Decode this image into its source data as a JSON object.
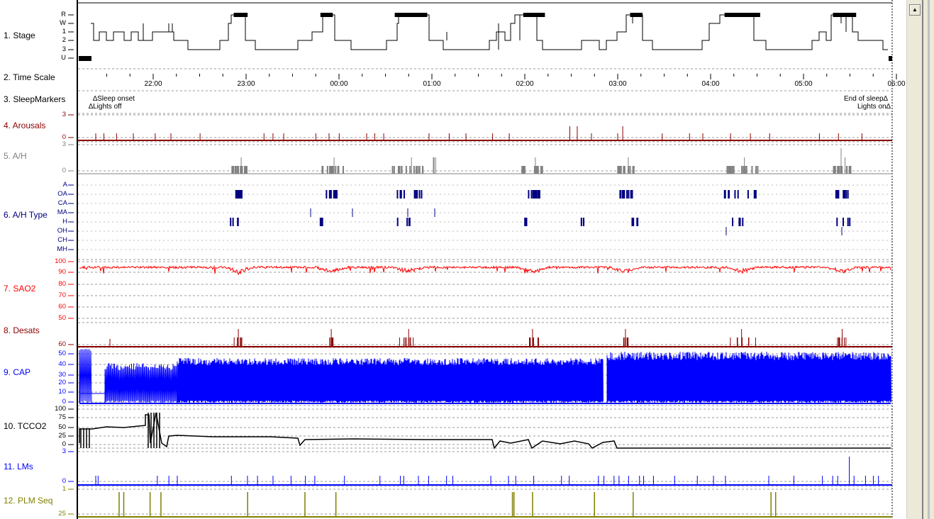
{
  "channels": [
    {
      "id": "stage",
      "label": "1. Stage",
      "color": "#000000",
      "ticks": [
        "R",
        "W",
        "1",
        "2",
        "3",
        "U"
      ]
    },
    {
      "id": "timescale",
      "label": "2. Time Scale",
      "color": "#000000",
      "ticks": []
    },
    {
      "id": "markers",
      "label": "3. SleepMarkers",
      "color": "#000000",
      "ticks": []
    },
    {
      "id": "arousals",
      "label": "4. Arousals",
      "color": "#8b0000",
      "ticks": [
        "3",
        "0"
      ]
    },
    {
      "id": "ah",
      "label": "5. A/H",
      "color": "#808080",
      "ticks": [
        "3",
        "0"
      ]
    },
    {
      "id": "ahtype",
      "label": "6. A/H Type",
      "color": "#000080",
      "ticks": [
        "A",
        "OA",
        "CA",
        "MA",
        "H",
        "OH",
        "CH",
        "MH"
      ]
    },
    {
      "id": "sao2",
      "label": "7. SAO2",
      "color": "#ff0000",
      "ticks": [
        "100",
        "90",
        "80",
        "70",
        "60",
        "50"
      ]
    },
    {
      "id": "desats",
      "label": "8. Desats",
      "color": "#8b0000",
      "ticks": [
        "60"
      ]
    },
    {
      "id": "cap",
      "label": "9. CAP",
      "color": "#0000ff",
      "ticks": [
        "50",
        "40",
        "30",
        "20",
        "10",
        "0"
      ]
    },
    {
      "id": "tcco2",
      "label": "10. TCCO2",
      "color": "#000000",
      "ticks": [
        "100",
        "75",
        "50",
        "25",
        "0"
      ]
    },
    {
      "id": "lms",
      "label": "11. LMs",
      "color": "#0000ff",
      "ticks": [
        "3",
        "0"
      ]
    },
    {
      "id": "plmseq",
      "label": "12. PLM Seq",
      "color": "#808000",
      "ticks": [
        "1",
        "25"
      ]
    }
  ],
  "time_axis": {
    "labels": [
      "22:00",
      "23:00",
      "00:00",
      "01:00",
      "02:00",
      "03:00",
      "04:00",
      "05:00",
      "06:00"
    ]
  },
  "markers": {
    "sleep_onset": "Sleep onset",
    "lights_off": "Lights off",
    "end_of_sleep": "End of sleep",
    "lights_on": "Lights on",
    "triangle": "∆"
  },
  "chart_data": {
    "type": "line",
    "title": "",
    "x_range": [
      "21:25",
      "06:00"
    ],
    "series": [
      {
        "name": "1. Stage",
        "values_hint": "hypnogram with REM periods near 23:00, 00:00, 00:45, 02:05, 03:10, 04:20, 05:25"
      },
      {
        "name": "7. SAO2",
        "typical_value": 96,
        "min_value": 88
      },
      {
        "name": "9. CAP",
        "typical_range": [
          0,
          45
        ]
      },
      {
        "name": "10. TCCO2",
        "typical_value": 30
      }
    ],
    "rem_periods": [
      [
        "22:52",
        "23:01"
      ],
      [
        "23:48",
        "23:56"
      ],
      [
        "00:36",
        "00:57"
      ],
      [
        "01:59",
        "02:13"
      ],
      [
        "03:08",
        "03:16"
      ],
      [
        "04:09",
        "04:32"
      ],
      [
        "05:19",
        "05:34"
      ]
    ],
    "ah_clusters": [
      "22:55",
      "23:55",
      "00:45",
      "02:05",
      "03:05",
      "04:20",
      "05:25"
    ],
    "desat_clusters": [
      "22:55",
      "23:55",
      "00:45",
      "02:05",
      "03:05",
      "04:20",
      "05:25"
    ],
    "plm_seq_times": [
      "21:38",
      "21:41",
      "21:58",
      "22:05",
      "23:01",
      "23:38",
      "23:58",
      "01:52",
      "01:53",
      "02:05",
      "02:45",
      "03:10",
      "04:39",
      "04:42"
    ]
  },
  "ui": {
    "scroll_up_glyph": "▲"
  }
}
